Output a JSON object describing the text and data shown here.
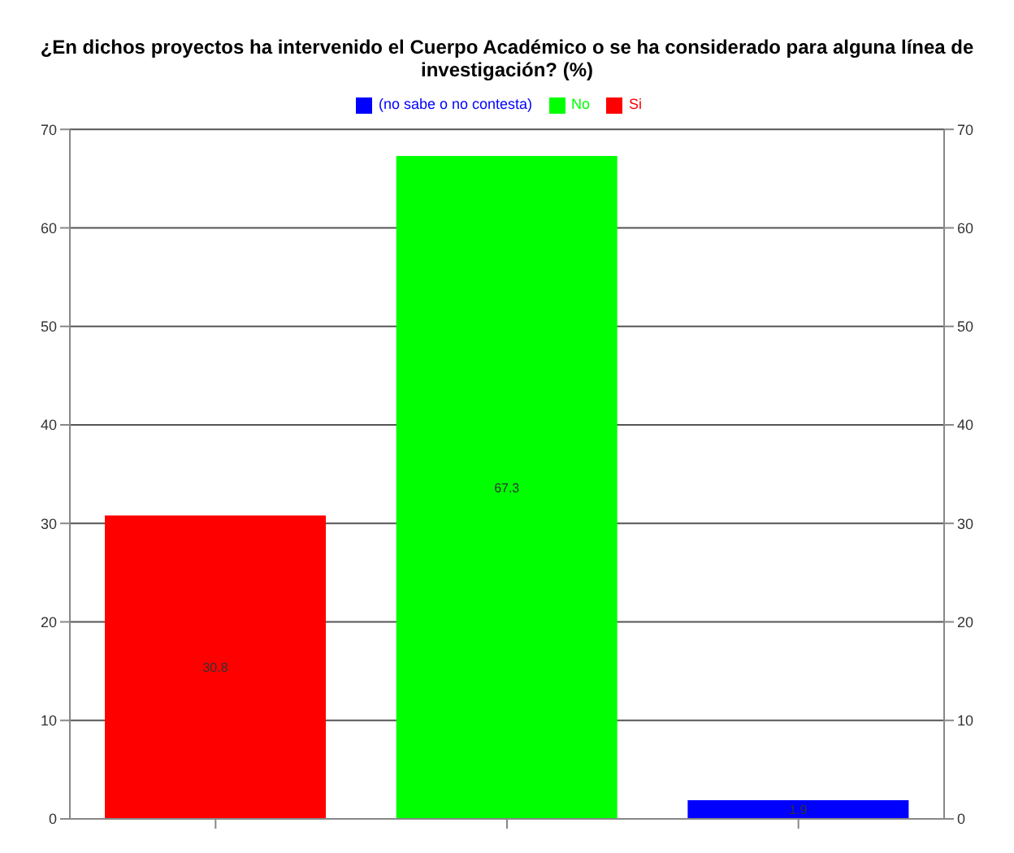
{
  "chart_data": {
    "type": "bar",
    "title": "¿En dichos proyectos ha intervenido el Cuerpo Académico o se ha considerado para alguna línea de investigación? (%)",
    "categories": [
      null,
      null,
      null
    ],
    "series": [
      {
        "name": "Si",
        "color": "#ff0000",
        "values": [
          30.8,
          null,
          null
        ]
      },
      {
        "name": "No",
        "color": "#00ff00",
        "values": [
          null,
          67.3,
          null
        ]
      },
      {
        "name": "(no sabe o no contesta)",
        "color": "#0000ff",
        "values": [
          null,
          null,
          1.9
        ]
      }
    ],
    "stacked": true,
    "ylim": [
      0,
      70
    ],
    "yticks": [
      0,
      10,
      20,
      30,
      40,
      50,
      60,
      70
    ],
    "y2lim": [
      0,
      70
    ],
    "y2ticks": [
      0,
      10,
      20,
      30,
      40,
      50,
      60,
      70
    ],
    "grid": "y",
    "legend": "top",
    "data_labels": true
  }
}
